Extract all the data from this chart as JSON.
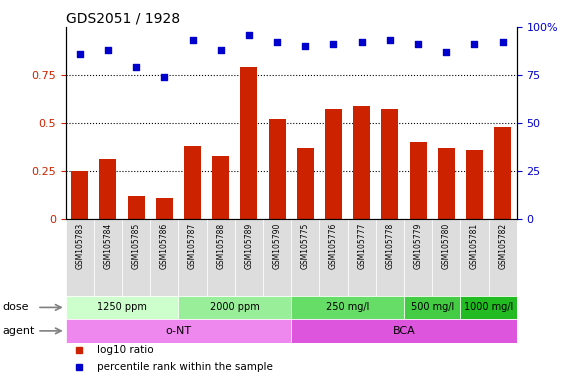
{
  "title": "GDS2051 / 1928",
  "categories": [
    "GSM105783",
    "GSM105784",
    "GSM105785",
    "GSM105786",
    "GSM105787",
    "GSM105788",
    "GSM105789",
    "GSM105790",
    "GSM105775",
    "GSM105776",
    "GSM105777",
    "GSM105778",
    "GSM105779",
    "GSM105780",
    "GSM105781",
    "GSM105782"
  ],
  "bar_values": [
    0.25,
    0.31,
    0.12,
    0.11,
    0.38,
    0.33,
    0.79,
    0.52,
    0.37,
    0.57,
    0.59,
    0.57,
    0.4,
    0.37,
    0.36,
    0.48
  ],
  "scatter_values": [
    86,
    88,
    79,
    74,
    93,
    88,
    96,
    92,
    90,
    91,
    92,
    93,
    91,
    87,
    91,
    92
  ],
  "bar_color": "#cc2200",
  "scatter_color": "#0000cc",
  "ylim_left": [
    0,
    1.0
  ],
  "ylim_right": [
    0,
    100
  ],
  "yticks_left": [
    0,
    0.25,
    0.5,
    0.75
  ],
  "yticks_right": [
    0,
    25,
    50,
    75,
    100
  ],
  "dose_groups": [
    {
      "label": "1250 ppm",
      "start": 0,
      "end": 4,
      "color": "#ccffcc"
    },
    {
      "label": "2000 ppm",
      "start": 4,
      "end": 8,
      "color": "#99ee99"
    },
    {
      "label": "250 mg/l",
      "start": 8,
      "end": 12,
      "color": "#66dd66"
    },
    {
      "label": "500 mg/l",
      "start": 12,
      "end": 14,
      "color": "#44cc44"
    },
    {
      "label": "1000 mg/l",
      "start": 14,
      "end": 16,
      "color": "#22bb22"
    }
  ],
  "agent_groups": [
    {
      "label": "o-NT",
      "start": 0,
      "end": 8,
      "color": "#ee88ee"
    },
    {
      "label": "BCA",
      "start": 8,
      "end": 16,
      "color": "#dd55dd"
    }
  ],
  "dose_label": "dose",
  "agent_label": "agent",
  "legend_bar": "log10 ratio",
  "legend_scatter": "percentile rank within the sample",
  "background_color": "#ffffff",
  "tick_color_left": "#cc2200",
  "tick_color_right": "#0000cc",
  "xtick_bg": "#dddddd"
}
